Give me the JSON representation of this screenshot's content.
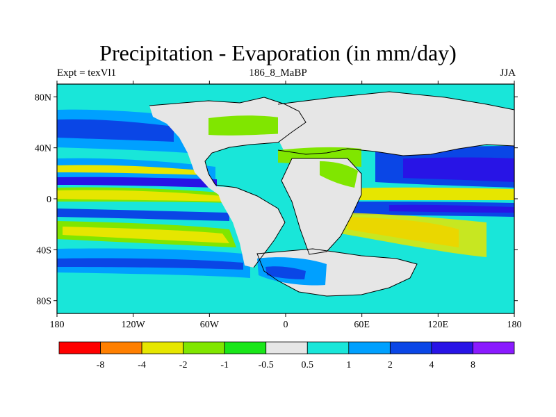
{
  "title": "Precipitation - Evaporation (in mm/day)",
  "subtitle_left": "Expt = texVl1",
  "subtitle_center": "186_8_MaBP",
  "subtitle_right": "JJA",
  "map": {
    "projection": "cylindrical-equidistant",
    "lon_range": [
      -180,
      180
    ],
    "lat_range": [
      -90,
      90
    ],
    "lon_ticks": [
      {
        "value": -180,
        "label": "180"
      },
      {
        "value": -120,
        "label": "120W"
      },
      {
        "value": -60,
        "label": "60W"
      },
      {
        "value": 0,
        "label": "0"
      },
      {
        "value": 60,
        "label": "60E"
      },
      {
        "value": 120,
        "label": "120E"
      },
      {
        "value": 180,
        "label": "180"
      }
    ],
    "lat_ticks": [
      {
        "value": 80,
        "label": "80N"
      },
      {
        "value": 40,
        "label": "40N"
      },
      {
        "value": 0,
        "label": "0"
      },
      {
        "value": -40,
        "label": "40S"
      },
      {
        "value": -80,
        "label": "80S"
      }
    ]
  },
  "colorbar": {
    "colors": [
      "#ff0000",
      "#ff7f00",
      "#e6e600",
      "#80e600",
      "#19e619",
      "#e6e6e6",
      "#19e6d9",
      "#00a0ff",
      "#0a46e6",
      "#2814e6",
      "#8a1aff"
    ],
    "labels": [
      "-8",
      "-4",
      "-2",
      "-1",
      "-0.5",
      "0.5",
      "1",
      "2",
      "4",
      "8"
    ]
  },
  "land_color": "#e6e6e6",
  "ocean_background": "#19e6d9"
}
